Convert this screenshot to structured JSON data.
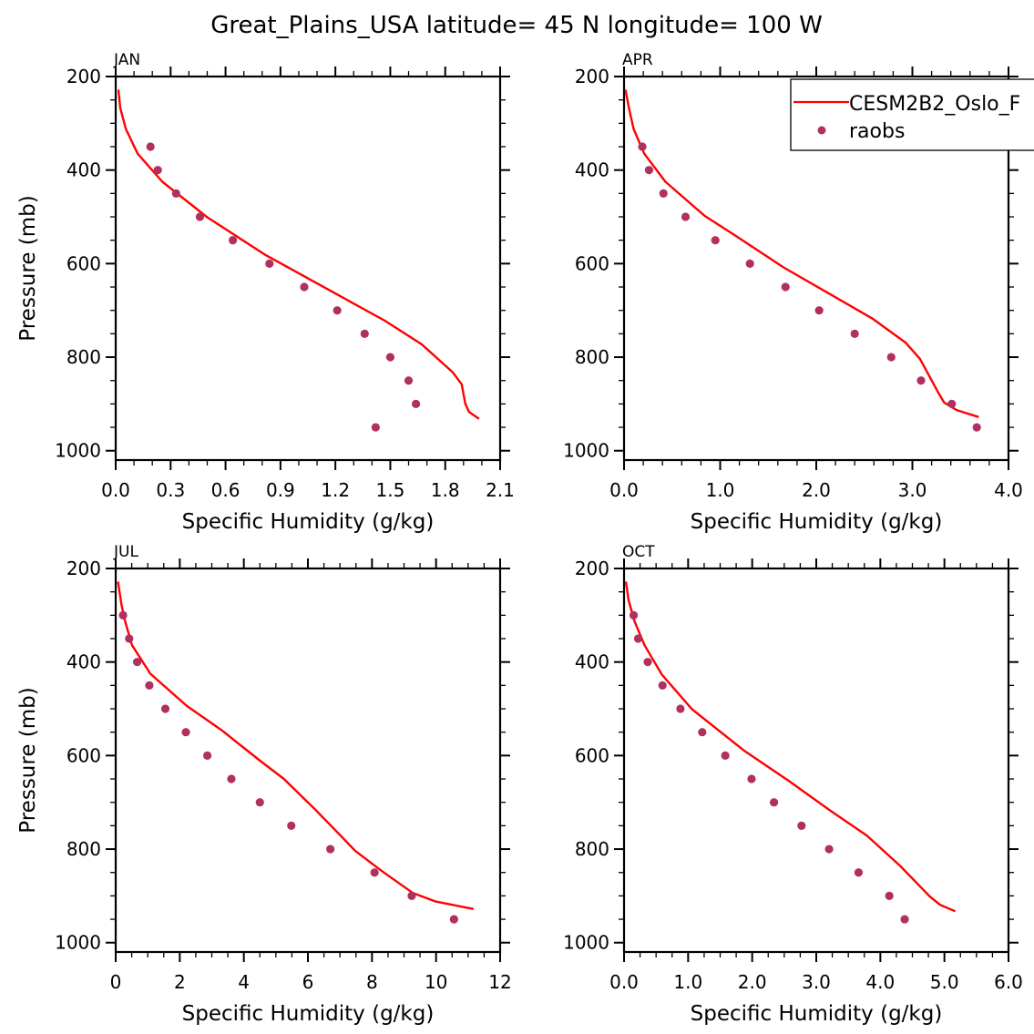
{
  "figure": {
    "title": "Great_Plains_USA  latitude= 45 N longitude= 100 W",
    "legend": {
      "placement": "top-right",
      "entries": [
        {
          "label": "CESM2B2_Oslo_F",
          "kind": "line",
          "color": "#ff0000"
        },
        {
          "label": "raobs",
          "kind": "marker",
          "color": "#b03060"
        }
      ]
    }
  },
  "chart_data": [
    {
      "type": "line",
      "panel": "JAN",
      "title": "JAN",
      "xlabel": "Specific Humidity (g/kg)",
      "ylabel": "Pressure (mb)",
      "xlim": [
        0,
        2.1
      ],
      "ylim": [
        1020,
        200
      ],
      "xticks": [
        0.0,
        0.3,
        0.6,
        0.9,
        1.2,
        1.5,
        1.8,
        2.1
      ],
      "xtick_labels": [
        "0.0",
        "0.3",
        "0.6",
        "0.9",
        "1.2",
        "1.5",
        "1.8",
        "2.1"
      ],
      "x_minor_step": 0.1,
      "yticks": [
        200,
        400,
        600,
        800,
        1000
      ],
      "ytick_labels": [
        "200",
        "400",
        "600",
        "800",
        "1000"
      ],
      "y_minor_step": 50,
      "grid": false,
      "series": [
        {
          "name": "CESM2B2_Oslo_F",
          "kind": "line",
          "color": "#ff0000",
          "x": [
            0.015,
            0.025,
            0.055,
            0.12,
            0.255,
            0.5,
            0.82,
            1.47,
            1.67,
            1.84,
            1.89,
            1.91,
            1.93,
            1.985
          ],
          "p": [
            228,
            267,
            312,
            365,
            425,
            501,
            582,
            722,
            772,
            832,
            858,
            900,
            917,
            932
          ]
        },
        {
          "name": "raobs",
          "kind": "scatter",
          "color": "#b03060",
          "x": [
            0.19,
            0.23,
            0.33,
            0.46,
            0.64,
            0.84,
            1.03,
            1.21,
            1.36,
            1.5,
            1.6,
            1.64,
            1.42
          ],
          "p": [
            350,
            400,
            450,
            500,
            550,
            600,
            650,
            700,
            750,
            800,
            850,
            900,
            950
          ]
        }
      ]
    },
    {
      "type": "line",
      "panel": "APR",
      "title": "APR",
      "xlabel": "Specific Humidity (g/kg)",
      "ylabel": "",
      "xlim": [
        0,
        4.0
      ],
      "ylim": [
        1020,
        200
      ],
      "xticks": [
        0.0,
        1.0,
        2.0,
        3.0,
        4.0
      ],
      "xtick_labels": [
        "0.0",
        "1.0",
        "2.0",
        "3.0",
        "4.0"
      ],
      "x_minor_step": 0.2,
      "yticks": [
        200,
        400,
        600,
        800,
        1000
      ],
      "ytick_labels": [
        "200",
        "400",
        "600",
        "800",
        "1000"
      ],
      "y_minor_step": 50,
      "grid": false,
      "series": [
        {
          "name": "CESM2B2_Oslo_F",
          "kind": "line",
          "color": "#ff0000",
          "x": [
            0.015,
            0.05,
            0.1,
            0.21,
            0.43,
            0.84,
            1.18,
            1.66,
            2.58,
            2.93,
            3.08,
            3.27,
            3.33,
            3.46,
            3.69
          ],
          "p": [
            228,
            267,
            312,
            365,
            425,
            498,
            543,
            608,
            717,
            769,
            804,
            876,
            897,
            913,
            928
          ]
        },
        {
          "name": "raobs",
          "kind": "scatter",
          "color": "#b03060",
          "x": [
            0.19,
            0.26,
            0.41,
            0.64,
            0.95,
            1.31,
            1.68,
            2.03,
            2.4,
            2.78,
            3.09,
            3.41,
            3.67
          ],
          "p": [
            350,
            400,
            450,
            500,
            550,
            600,
            650,
            700,
            750,
            800,
            850,
            900,
            950
          ]
        }
      ]
    },
    {
      "type": "line",
      "panel": "JUL",
      "title": "JUL",
      "xlabel": "Specific Humidity (g/kg)",
      "ylabel": "Pressure (mb)",
      "xlim": [
        0,
        12
      ],
      "ylim": [
        1020,
        200
      ],
      "xticks": [
        0,
        2,
        4,
        6,
        8,
        10,
        12
      ],
      "xtick_labels": [
        "0",
        "2",
        "4",
        "6",
        "8",
        "10",
        "12"
      ],
      "x_minor_step": 0.5,
      "yticks": [
        200,
        400,
        600,
        800,
        1000
      ],
      "ytick_labels": [
        "200",
        "400",
        "600",
        "800",
        "1000"
      ],
      "y_minor_step": 50,
      "grid": false,
      "series": [
        {
          "name": "CESM2B2_Oslo_F",
          "kind": "line",
          "color": "#ff0000",
          "x": [
            0.07,
            0.18,
            0.29,
            0.51,
            1.08,
            2.22,
            3.31,
            4.45,
            5.25,
            6.25,
            7.0,
            7.48,
            8.33,
            9.28,
            9.99,
            11.17
          ],
          "p": [
            228,
            277,
            312,
            364,
            425,
            494,
            546,
            608,
            650,
            717,
            770,
            804,
            848,
            894,
            912,
            928
          ]
        },
        {
          "name": "raobs",
          "kind": "scatter",
          "color": "#b03060",
          "x": [
            0.23,
            0.42,
            0.67,
            1.05,
            1.55,
            2.19,
            2.86,
            3.61,
            4.5,
            5.48,
            6.7,
            8.08,
            9.24,
            10.56
          ],
          "p": [
            300,
            350,
            400,
            450,
            500,
            550,
            600,
            650,
            700,
            750,
            800,
            850,
            900,
            950
          ]
        }
      ]
    },
    {
      "type": "line",
      "panel": "OCT",
      "title": "OCT",
      "xlabel": "Specific Humidity (g/kg)",
      "ylabel": "",
      "xlim": [
        0,
        6.0
      ],
      "ylim": [
        1020,
        200
      ],
      "xticks": [
        0.0,
        1.0,
        2.0,
        3.0,
        4.0,
        5.0,
        6.0
      ],
      "xtick_labels": [
        "0.0",
        "1.0",
        "2.0",
        "3.0",
        "4.0",
        "5.0",
        "6.0"
      ],
      "x_minor_step": 0.25,
      "yticks": [
        200,
        400,
        600,
        800,
        1000
      ],
      "ytick_labels": [
        "200",
        "400",
        "600",
        "800",
        "1000"
      ],
      "y_minor_step": 50,
      "grid": false,
      "series": [
        {
          "name": "CESM2B2_Oslo_F",
          "kind": "line",
          "color": "#ff0000",
          "x": [
            0.03,
            0.07,
            0.16,
            0.32,
            0.59,
            1.06,
            1.87,
            2.58,
            3.2,
            3.79,
            4.31,
            4.77,
            4.93,
            5.17
          ],
          "p": [
            228,
            267,
            312,
            364,
            427,
            501,
            589,
            655,
            716,
            771,
            836,
            901,
            919,
            933
          ]
        },
        {
          "name": "raobs",
          "kind": "scatter",
          "color": "#b03060",
          "x": [
            0.15,
            0.22,
            0.37,
            0.6,
            0.88,
            1.22,
            1.58,
            1.99,
            2.34,
            2.77,
            3.2,
            3.66,
            4.14,
            4.38
          ],
          "p": [
            300,
            350,
            400,
            450,
            500,
            550,
            600,
            650,
            700,
            750,
            800,
            850,
            900,
            950
          ]
        }
      ]
    }
  ]
}
